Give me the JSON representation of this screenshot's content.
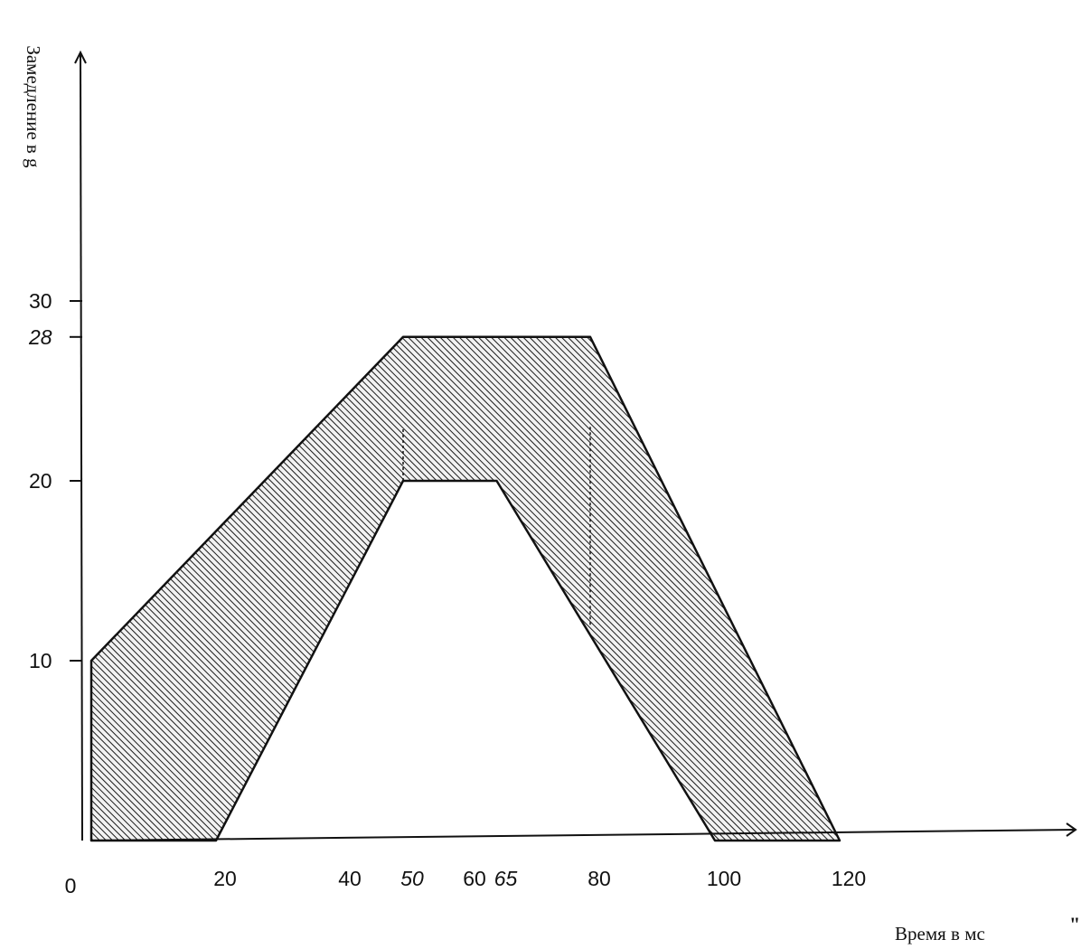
{
  "chart_data": {
    "type": "area",
    "title": "",
    "xlabel": "Время в мс",
    "ylabel": "Замедление в g",
    "xlim": [
      0,
      150
    ],
    "ylim": [
      0,
      40
    ],
    "grid": false,
    "x_ticks": [
      {
        "value": 0,
        "label": "0",
        "italic": false
      },
      {
        "value": 20,
        "label": "20",
        "italic": false
      },
      {
        "value": 40,
        "label": "40",
        "italic": false
      },
      {
        "value": 50,
        "label": "50",
        "italic": true
      },
      {
        "value": 60,
        "label": "60",
        "italic": false
      },
      {
        "value": 65,
        "label": "65",
        "italic": true
      },
      {
        "value": 80,
        "label": "80",
        "italic": false
      },
      {
        "value": 100,
        "label": "100",
        "italic": false
      },
      {
        "value": 120,
        "label": "120",
        "italic": false
      }
    ],
    "y_ticks": [
      {
        "value": 10,
        "label": "10",
        "italic": false
      },
      {
        "value": 20,
        "label": "20",
        "italic": false
      },
      {
        "value": 28,
        "label": "28",
        "italic": true
      },
      {
        "value": 30,
        "label": "30",
        "italic": false
      }
    ],
    "upper_boundary": {
      "x": [
        0,
        50,
        80,
        120
      ],
      "y": [
        10,
        28,
        28,
        0
      ]
    },
    "lower_boundary": {
      "x": [
        0,
        20,
        50,
        65,
        100
      ],
      "y": [
        0,
        0,
        20,
        20,
        0
      ]
    },
    "markers": [
      {
        "x": 50,
        "y_from": 20,
        "y_to": 23
      },
      {
        "x": 80,
        "y_from": 12,
        "y_to": 23
      }
    ],
    "fill": "hatched"
  },
  "colors": {
    "ink": "#111111",
    "background": "#ffffff"
  },
  "stray_mark": "\""
}
